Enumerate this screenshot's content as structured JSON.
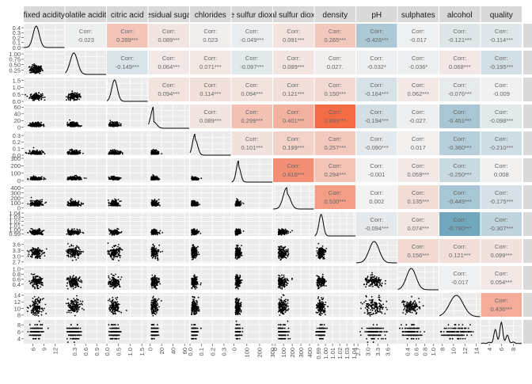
{
  "chart_data": {
    "type": "scatter-matrix",
    "variables": [
      "fixed acidity",
      "volatile acidity",
      "citric acid",
      "residual sugar",
      "chlorides",
      "free sulfur dioxide",
      "total sulfur dioxide",
      "density",
      "pH",
      "sulphates",
      "alcohol",
      "quality"
    ],
    "correlation_label": "Corr:",
    "correlations": [
      {
        "row": 0,
        "col": 1,
        "value": "-0.023"
      },
      {
        "row": 0,
        "col": 2,
        "value": "0.289***"
      },
      {
        "row": 0,
        "col": 3,
        "value": "0.089***"
      },
      {
        "row": 0,
        "col": 4,
        "value": "0.023"
      },
      {
        "row": 0,
        "col": 5,
        "value": "-0.049***"
      },
      {
        "row": 0,
        "col": 6,
        "value": "0.091***"
      },
      {
        "row": 0,
        "col": 7,
        "value": "0.265***"
      },
      {
        "row": 0,
        "col": 8,
        "value": "-0.426***"
      },
      {
        "row": 0,
        "col": 9,
        "value": "-0.017"
      },
      {
        "row": 0,
        "col": 10,
        "value": "-0.121***"
      },
      {
        "row": 0,
        "col": 11,
        "value": "-0.114***"
      },
      {
        "row": 1,
        "col": 2,
        "value": "-0.149***"
      },
      {
        "row": 1,
        "col": 3,
        "value": "0.064***"
      },
      {
        "row": 1,
        "col": 4,
        "value": "0.071***"
      },
      {
        "row": 1,
        "col": 5,
        "value": "-0.097***"
      },
      {
        "row": 1,
        "col": 6,
        "value": "0.089***"
      },
      {
        "row": 1,
        "col": 7,
        "value": "0.027."
      },
      {
        "row": 1,
        "col": 8,
        "value": "-0.032*"
      },
      {
        "row": 1,
        "col": 9,
        "value": "-0.036*"
      },
      {
        "row": 1,
        "col": 10,
        "value": "0.068***"
      },
      {
        "row": 1,
        "col": 11,
        "value": "-0.195***"
      },
      {
        "row": 2,
        "col": 3,
        "value": "0.094***"
      },
      {
        "row": 2,
        "col": 4,
        "value": "0.114***"
      },
      {
        "row": 2,
        "col": 5,
        "value": "0.094***"
      },
      {
        "row": 2,
        "col": 6,
        "value": "0.121***"
      },
      {
        "row": 2,
        "col": 7,
        "value": "0.150***"
      },
      {
        "row": 2,
        "col": 8,
        "value": "-0.164***"
      },
      {
        "row": 2,
        "col": 9,
        "value": "0.062***"
      },
      {
        "row": 2,
        "col": 10,
        "value": "-0.076***"
      },
      {
        "row": 2,
        "col": 11,
        "value": "-0.009"
      },
      {
        "row": 3,
        "col": 4,
        "value": "0.089***"
      },
      {
        "row": 3,
        "col": 5,
        "value": "0.299***"
      },
      {
        "row": 3,
        "col": 6,
        "value": "0.401***"
      },
      {
        "row": 3,
        "col": 7,
        "value": "0.839***"
      },
      {
        "row": 3,
        "col": 8,
        "value": "-0.194***"
      },
      {
        "row": 3,
        "col": 9,
        "value": "-0.027."
      },
      {
        "row": 3,
        "col": 10,
        "value": "-0.451***"
      },
      {
        "row": 3,
        "col": 11,
        "value": "-0.098***"
      },
      {
        "row": 4,
        "col": 5,
        "value": "0.101***"
      },
      {
        "row": 4,
        "col": 6,
        "value": "0.199***"
      },
      {
        "row": 4,
        "col": 7,
        "value": "0.257***"
      },
      {
        "row": 4,
        "col": 8,
        "value": "-0.090***"
      },
      {
        "row": 4,
        "col": 9,
        "value": "0.017"
      },
      {
        "row": 4,
        "col": 10,
        "value": "-0.360***"
      },
      {
        "row": 4,
        "col": 11,
        "value": "-0.210***"
      },
      {
        "row": 5,
        "col": 6,
        "value": "0.616***"
      },
      {
        "row": 5,
        "col": 7,
        "value": "0.294***"
      },
      {
        "row": 5,
        "col": 8,
        "value": "-0.001"
      },
      {
        "row": 5,
        "col": 9,
        "value": "0.059***"
      },
      {
        "row": 5,
        "col": 10,
        "value": "-0.250***"
      },
      {
        "row": 5,
        "col": 11,
        "value": "0.008"
      },
      {
        "row": 6,
        "col": 7,
        "value": "0.530***"
      },
      {
        "row": 6,
        "col": 8,
        "value": "0.002"
      },
      {
        "row": 6,
        "col": 9,
        "value": "0.135***"
      },
      {
        "row": 6,
        "col": 10,
        "value": "-0.449***"
      },
      {
        "row": 6,
        "col": 11,
        "value": "-0.175***"
      },
      {
        "row": 7,
        "col": 8,
        "value": "-0.094***"
      },
      {
        "row": 7,
        "col": 9,
        "value": "0.074***"
      },
      {
        "row": 7,
        "col": 10,
        "value": "-0.780***"
      },
      {
        "row": 7,
        "col": 11,
        "value": "-0.307***"
      },
      {
        "row": 8,
        "col": 9,
        "value": "0.156***"
      },
      {
        "row": 8,
        "col": 10,
        "value": "0.121***"
      },
      {
        "row": 8,
        "col": 11,
        "value": "0.099***"
      },
      {
        "row": 9,
        "col": 10,
        "value": "-0.017"
      },
      {
        "row": 9,
        "col": 11,
        "value": "0.054***"
      },
      {
        "row": 10,
        "col": 11,
        "value": "0.436***"
      }
    ],
    "x_axes": [
      {
        "range": [
          3.5,
          14.5
        ],
        "ticks": [
          "6",
          "9",
          "12"
        ],
        "tick_values": [
          6,
          9,
          12
        ]
      },
      {
        "range": [
          0.05,
          1.15
        ],
        "ticks": [
          "0.3",
          "0.6",
          "0.9"
        ],
        "tick_values": [
          0.3,
          0.6,
          0.9
        ]
      },
      {
        "range": [
          0,
          1.75
        ],
        "ticks": [
          "0.0",
          "0.5",
          "1.0",
          "1.5"
        ],
        "tick_values": [
          0,
          0.5,
          1.0,
          1.5
        ]
      },
      {
        "range": [
          -3,
          68
        ],
        "ticks": [
          "0",
          "20",
          "40",
          "60"
        ],
        "tick_values": [
          0,
          20,
          40,
          60
        ]
      },
      {
        "range": [
          0,
          0.36
        ],
        "ticks": [
          "0.0",
          "0.1",
          "0.2",
          "0.3"
        ],
        "tick_values": [
          0,
          0.1,
          0.2,
          0.3
        ]
      },
      {
        "range": [
          -20,
          300
        ],
        "ticks": [
          "0",
          "100",
          "200",
          "300"
        ],
        "tick_values": [
          0,
          100,
          200,
          300
        ]
      },
      {
        "range": [
          -20,
          450
        ],
        "ticks": [
          "0",
          "100",
          "200",
          "300",
          "400"
        ],
        "tick_values": [
          0,
          100,
          200,
          300,
          400
        ]
      },
      {
        "range": [
          0.985,
          1.042
        ],
        "ticks": [
          "0.99",
          "1.00",
          "1.01",
          "1.02",
          "1.03",
          "1.04"
        ],
        "tick_values": [
          0.99,
          1.0,
          1.01,
          1.02,
          1.03,
          1.04
        ]
      },
      {
        "range": [
          2.65,
          3.88
        ],
        "ticks": [
          "2.7",
          "3.0",
          "3.3",
          "3.6"
        ],
        "tick_values": [
          2.7,
          3.0,
          3.3,
          3.6
        ]
      },
      {
        "range": [
          0.18,
          1.12
        ],
        "ticks": [
          "0.4",
          "0.6",
          "0.8",
          "1.0"
        ],
        "tick_values": [
          0.4,
          0.6,
          0.8,
          1.0
        ]
      },
      {
        "range": [
          7.5,
          14.7
        ],
        "ticks": [
          "8",
          "10",
          "12",
          "14"
        ],
        "tick_values": [
          8,
          10,
          12,
          14
        ]
      },
      {
        "range": [
          2.6,
          9.4
        ],
        "ticks": [
          "4",
          "6",
          "8"
        ],
        "tick_values": [
          4,
          6,
          8
        ]
      }
    ],
    "y_axes": [
      {
        "range": [
          0,
          0.48
        ],
        "ticks": [
          "0.0",
          "0.1",
          "0.2",
          "0.3",
          "0.4"
        ],
        "tick_values": [
          0,
          0.1,
          0.2,
          0.3,
          0.4
        ]
      },
      {
        "range": [
          0.05,
          1.15
        ],
        "ticks": [
          "0.25",
          "0.50",
          "0.75",
          "1.00"
        ],
        "tick_values": [
          0.25,
          0.5,
          0.75,
          1.0
        ]
      },
      {
        "range": [
          0,
          1.7
        ],
        "ticks": [
          "0.0",
          "0.5",
          "1.0",
          "1.5"
        ],
        "tick_values": [
          0,
          0.5,
          1.0,
          1.5
        ]
      },
      {
        "range": [
          -3,
          68
        ],
        "ticks": [
          "0",
          "20",
          "40",
          "60"
        ],
        "tick_values": [
          0,
          20,
          40,
          60
        ]
      },
      {
        "range": [
          0,
          0.36
        ],
        "ticks": [
          "0.0",
          "0.1",
          "0.2",
          "0.3"
        ],
        "tick_values": [
          0,
          0.1,
          0.2,
          0.3
        ]
      },
      {
        "range": [
          -20,
          300
        ],
        "ticks": [
          "0",
          "100",
          "200",
          "300"
        ],
        "tick_values": [
          0,
          100,
          200,
          300
        ]
      },
      {
        "range": [
          -20,
          450
        ],
        "ticks": [
          "0",
          "100",
          "200",
          "300",
          "400"
        ],
        "tick_values": [
          0,
          100,
          200,
          300,
          400
        ]
      },
      {
        "range": [
          0.985,
          1.042
        ],
        "ticks": [
          "0.99",
          "1.00",
          "1.01",
          "1.02",
          "1.03",
          "1.04"
        ],
        "tick_values": [
          0.99,
          1.0,
          1.01,
          1.02,
          1.03,
          1.04
        ]
      },
      {
        "range": [
          2.65,
          3.88
        ],
        "ticks": [
          "2.7",
          "3.0",
          "3.3",
          "3.6"
        ],
        "tick_values": [
          2.7,
          3.0,
          3.3,
          3.6
        ]
      },
      {
        "range": [
          0.18,
          1.12
        ],
        "ticks": [
          "0.4",
          "0.6",
          "0.8",
          "1.0"
        ],
        "tick_values": [
          0.4,
          0.6,
          0.8,
          1.0
        ]
      },
      {
        "range": [
          7.5,
          14.7
        ],
        "ticks": [
          "8",
          "10",
          "12",
          "14"
        ],
        "tick_values": [
          8,
          10,
          12,
          14
        ]
      },
      {
        "range": [
          2.6,
          9.4
        ],
        "ticks": [
          "4",
          "6",
          "8"
        ],
        "tick_values": [
          4,
          6,
          8
        ]
      }
    ],
    "distributions": [
      {
        "mean": 6.85,
        "sd": 0.84
      },
      {
        "mean": 0.28,
        "sd": 0.1
      },
      {
        "mean": 0.33,
        "sd": 0.12
      },
      {
        "mean": 6.4,
        "sd": 5.1
      },
      {
        "mean": 0.046,
        "sd": 0.022
      },
      {
        "mean": 35,
        "sd": 17
      },
      {
        "mean": 138,
        "sd": 42
      },
      {
        "mean": 0.994,
        "sd": 0.003
      },
      {
        "mean": 3.19,
        "sd": 0.15
      },
      {
        "mean": 0.49,
        "sd": 0.11
      },
      {
        "mean": 10.5,
        "sd": 1.2
      },
      {
        "mean": 5.88,
        "sd": 0.89
      }
    ],
    "diagonal_line_color": "#000000",
    "point_color": "#000000",
    "panel_background": "#ebebeb",
    "strip_background": "#d9d9d9",
    "gridline_color": "#ffffff",
    "correlation_colors": {
      "negative": "#5e9bb5",
      "neutral": "#f2f2f2",
      "positive": "#f4623a"
    }
  }
}
